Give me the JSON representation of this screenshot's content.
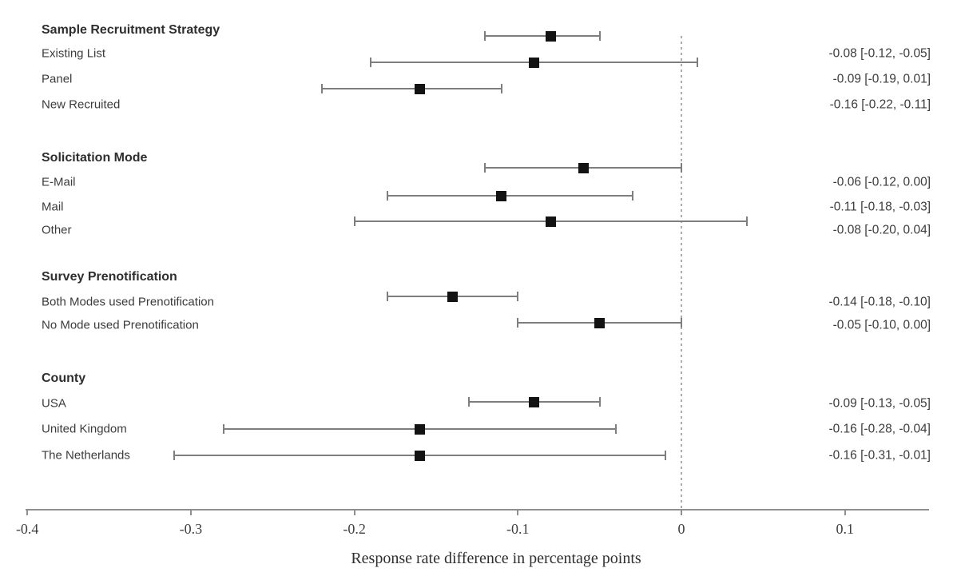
{
  "chart_data": {
    "type": "forest",
    "xlabel": "Response rate difference in percentage points",
    "x_ticks": [
      -0.4,
      -0.3,
      -0.2,
      -0.1,
      0,
      0.1
    ],
    "x_tick_labels": [
      "-0.4",
      "-0.3",
      "-0.2",
      "-0.1",
      "0",
      "0.1"
    ],
    "xlim": [
      -0.42,
      0.155
    ],
    "zero_reference_line": 0,
    "grid": false,
    "legend": "none",
    "groups": [
      {
        "label": "Sample Recruitment Strategy",
        "items": [
          {
            "label": "Existing List",
            "estimate": -0.08,
            "ci_low": -0.12,
            "ci_high": -0.05,
            "value_text": "-0.08 [-0.12, -0.05]"
          },
          {
            "label": "Panel",
            "estimate": -0.09,
            "ci_low": -0.19,
            "ci_high": 0.01,
            "value_text": "-0.09 [-0.19, 0.01]"
          },
          {
            "label": "New Recruited",
            "estimate": -0.16,
            "ci_low": -0.22,
            "ci_high": -0.11,
            "value_text": "-0.16 [-0.22, -0.11]"
          }
        ]
      },
      {
        "label": "Solicitation Mode",
        "items": [
          {
            "label": "E-Mail",
            "estimate": -0.06,
            "ci_low": -0.12,
            "ci_high": 0.0,
            "value_text": "-0.06 [-0.12, 0.00]"
          },
          {
            "label": "Mail",
            "estimate": -0.11,
            "ci_low": -0.18,
            "ci_high": -0.03,
            "value_text": "-0.11 [-0.18, -0.03]"
          },
          {
            "label": "Other",
            "estimate": -0.08,
            "ci_low": -0.2,
            "ci_high": 0.04,
            "value_text": "-0.08 [-0.20, 0.04]"
          }
        ]
      },
      {
        "label": "Survey Prenotification",
        "items": [
          {
            "label": "Both Modes used Prenotification",
            "estimate": -0.14,
            "ci_low": -0.18,
            "ci_high": -0.1,
            "value_text": "-0.14 [-0.18, -0.10]"
          },
          {
            "label": "No Mode used Prenotification",
            "estimate": -0.05,
            "ci_low": -0.1,
            "ci_high": 0.0,
            "value_text": "-0.05 [-0.10, 0.00]"
          }
        ]
      },
      {
        "label": "County",
        "items": [
          {
            "label": "USA",
            "estimate": -0.09,
            "ci_low": -0.13,
            "ci_high": -0.05,
            "value_text": "-0.09 [-0.13, -0.05]"
          },
          {
            "label": "United Kingdom",
            "estimate": -0.16,
            "ci_low": -0.28,
            "ci_high": -0.04,
            "value_text": "-0.16 [-0.28, -0.04]"
          },
          {
            "label": "The Netherlands",
            "estimate": -0.16,
            "ci_low": -0.31,
            "ci_high": -0.01,
            "value_text": "-0.16 [-0.31, -0.01]"
          }
        ]
      }
    ],
    "colors": {
      "marker": "#131313",
      "ci_line": "#7e7e7e",
      "axis": "#8f8f8f",
      "zero_line": "#ababab",
      "header_text": "#2e2e2e",
      "label_text": "#3c3c3c",
      "tick_text": "#3f3f3f"
    }
  }
}
